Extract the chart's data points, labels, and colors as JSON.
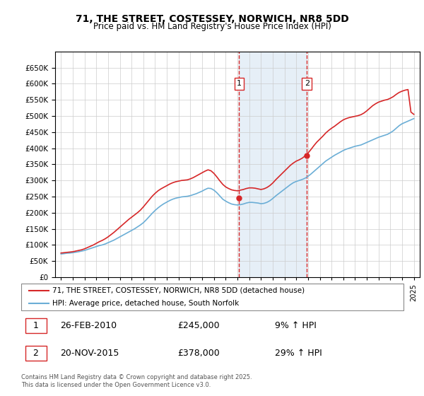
{
  "title": "71, THE STREET, COSTESSEY, NORWICH, NR8 5DD",
  "subtitle": "Price paid vs. HM Land Registry's House Price Index (HPI)",
  "legend_line1": "71, THE STREET, COSTESSEY, NORWICH, NR8 5DD (detached house)",
  "legend_line2": "HPI: Average price, detached house, South Norfolk",
  "footnote": "Contains HM Land Registry data © Crown copyright and database right 2025.\nThis data is licensed under the Open Government Licence v3.0.",
  "transaction1_label": "1",
  "transaction1_date": "26-FEB-2010",
  "transaction1_price": "£245,000",
  "transaction1_hpi": "9% ↑ HPI",
  "transaction2_label": "2",
  "transaction2_date": "20-NOV-2015",
  "transaction2_price": "£378,000",
  "transaction2_hpi": "29% ↑ HPI",
  "transaction1_x": 2010.15,
  "transaction2_x": 2015.9,
  "hpi_color": "#6baed6",
  "price_color": "#d62728",
  "background_color": "#ffffff",
  "grid_color": "#cccccc",
  "ylim": [
    0,
    700000
  ],
  "xlim": [
    1994.5,
    2025.5
  ],
  "yticks": [
    0,
    50000,
    100000,
    150000,
    200000,
    250000,
    300000,
    350000,
    400000,
    450000,
    500000,
    550000,
    600000,
    650000
  ],
  "xticks": [
    1995,
    1996,
    1997,
    1998,
    1999,
    2000,
    2001,
    2002,
    2003,
    2004,
    2005,
    2006,
    2007,
    2008,
    2009,
    2010,
    2011,
    2012,
    2013,
    2014,
    2015,
    2016,
    2017,
    2018,
    2019,
    2020,
    2021,
    2022,
    2023,
    2024,
    2025
  ],
  "hpi_years": [
    1995,
    1995.25,
    1995.5,
    1995.75,
    1996,
    1996.25,
    1996.5,
    1996.75,
    1997,
    1997.25,
    1997.5,
    1997.75,
    1998,
    1998.25,
    1998.5,
    1998.75,
    1999,
    1999.25,
    1999.5,
    1999.75,
    2000,
    2000.25,
    2000.5,
    2000.75,
    2001,
    2001.25,
    2001.5,
    2001.75,
    2002,
    2002.25,
    2002.5,
    2002.75,
    2003,
    2003.25,
    2003.5,
    2003.75,
    2004,
    2004.25,
    2004.5,
    2004.75,
    2005,
    2005.25,
    2005.5,
    2005.75,
    2006,
    2006.25,
    2006.5,
    2006.75,
    2007,
    2007.25,
    2007.5,
    2007.75,
    2008,
    2008.25,
    2008.5,
    2008.75,
    2009,
    2009.25,
    2009.5,
    2009.75,
    2010,
    2010.25,
    2010.5,
    2010.75,
    2011,
    2011.25,
    2011.5,
    2011.75,
    2012,
    2012.25,
    2012.5,
    2012.75,
    2013,
    2013.25,
    2013.5,
    2013.75,
    2014,
    2014.25,
    2014.5,
    2014.75,
    2015,
    2015.25,
    2015.5,
    2015.75,
    2016,
    2016.25,
    2016.5,
    2016.75,
    2017,
    2017.25,
    2017.5,
    2017.75,
    2018,
    2018.25,
    2018.5,
    2018.75,
    2019,
    2019.25,
    2019.5,
    2019.75,
    2020,
    2020.25,
    2020.5,
    2020.75,
    2021,
    2021.25,
    2021.5,
    2021.75,
    2022,
    2022.25,
    2022.5,
    2022.75,
    2023,
    2023.25,
    2023.5,
    2023.75,
    2024,
    2024.25,
    2024.5,
    2024.75,
    2025
  ],
  "hpi_values": [
    72000,
    73000,
    74500,
    75000,
    76000,
    77500,
    79000,
    81000,
    83000,
    86000,
    89000,
    92000,
    95000,
    98000,
    100000,
    103000,
    107000,
    111000,
    115000,
    120000,
    125000,
    130000,
    135000,
    140000,
    145000,
    150000,
    156000,
    162000,
    169000,
    178000,
    188000,
    198000,
    207000,
    215000,
    222000,
    228000,
    233000,
    238000,
    242000,
    245000,
    247000,
    249000,
    250000,
    251000,
    253000,
    256000,
    259000,
    263000,
    267000,
    272000,
    276000,
    275000,
    270000,
    262000,
    252000,
    242000,
    236000,
    231000,
    227000,
    225000,
    224000,
    225000,
    227000,
    230000,
    232000,
    232000,
    231000,
    230000,
    228000,
    229000,
    232000,
    237000,
    244000,
    252000,
    259000,
    266000,
    273000,
    280000,
    287000,
    293000,
    297000,
    300000,
    303000,
    307000,
    313000,
    320000,
    328000,
    336000,
    344000,
    352000,
    360000,
    366000,
    372000,
    378000,
    383000,
    388000,
    393000,
    397000,
    400000,
    403000,
    406000,
    408000,
    410000,
    414000,
    418000,
    422000,
    426000,
    430000,
    434000,
    437000,
    440000,
    443000,
    448000,
    454000,
    462000,
    470000,
    476000,
    480000,
    484000,
    488000,
    492000
  ],
  "price_years": [
    1995,
    1995.25,
    1995.5,
    1995.75,
    1996,
    1996.25,
    1996.5,
    1996.75,
    1997,
    1997.25,
    1997.5,
    1997.75,
    1998,
    1998.25,
    1998.5,
    1998.75,
    1999,
    1999.25,
    1999.5,
    1999.75,
    2000,
    2000.25,
    2000.5,
    2000.75,
    2001,
    2001.25,
    2001.5,
    2001.75,
    2002,
    2002.25,
    2002.5,
    2002.75,
    2003,
    2003.25,
    2003.5,
    2003.75,
    2004,
    2004.25,
    2004.5,
    2004.75,
    2005,
    2005.25,
    2005.5,
    2005.75,
    2006,
    2006.25,
    2006.5,
    2006.75,
    2007,
    2007.25,
    2007.5,
    2007.75,
    2008,
    2008.25,
    2008.5,
    2008.75,
    2009,
    2009.25,
    2009.5,
    2009.75,
    2010,
    2010.25,
    2010.5,
    2010.75,
    2011,
    2011.25,
    2011.5,
    2011.75,
    2012,
    2012.25,
    2012.5,
    2012.75,
    2013,
    2013.25,
    2013.5,
    2013.75,
    2014,
    2014.25,
    2014.5,
    2014.75,
    2015,
    2015.25,
    2015.5,
    2015.75,
    2016,
    2016.25,
    2016.5,
    2016.75,
    2017,
    2017.25,
    2017.5,
    2017.75,
    2018,
    2018.25,
    2018.5,
    2018.75,
    2019,
    2019.25,
    2019.5,
    2019.75,
    2020,
    2020.25,
    2020.5,
    2020.75,
    2021,
    2021.25,
    2021.5,
    2021.75,
    2022,
    2022.25,
    2022.5,
    2022.75,
    2023,
    2023.25,
    2023.5,
    2023.75,
    2024,
    2024.25,
    2024.5,
    2024.75,
    2025
  ],
  "price_values": [
    75000,
    76000,
    77000,
    78000,
    79000,
    81000,
    83000,
    85000,
    88000,
    92000,
    96000,
    100000,
    105000,
    110000,
    114000,
    119000,
    125000,
    132000,
    139000,
    147000,
    155000,
    163000,
    171000,
    179000,
    186000,
    193000,
    200000,
    208000,
    218000,
    229000,
    240000,
    251000,
    260000,
    268000,
    274000,
    279000,
    284000,
    289000,
    293000,
    296000,
    298000,
    300000,
    301000,
    302000,
    305000,
    309000,
    314000,
    319000,
    324000,
    329000,
    333000,
    330000,
    322000,
    311000,
    299000,
    288000,
    280000,
    275000,
    271000,
    269000,
    268000,
    270000,
    272000,
    275000,
    277000,
    277000,
    276000,
    274000,
    272000,
    274000,
    278000,
    284000,
    292000,
    302000,
    311000,
    320000,
    329000,
    338000,
    347000,
    354000,
    360000,
    364000,
    369000,
    376000,
    385000,
    396000,
    408000,
    419000,
    428000,
    437000,
    447000,
    455000,
    462000,
    468000,
    475000,
    482000,
    488000,
    492000,
    495000,
    497000,
    499000,
    501000,
    504000,
    509000,
    516000,
    524000,
    532000,
    538000,
    543000,
    546000,
    549000,
    551000,
    555000,
    560000,
    567000,
    573000,
    577000,
    580000,
    582000,
    512000,
    505000
  ]
}
